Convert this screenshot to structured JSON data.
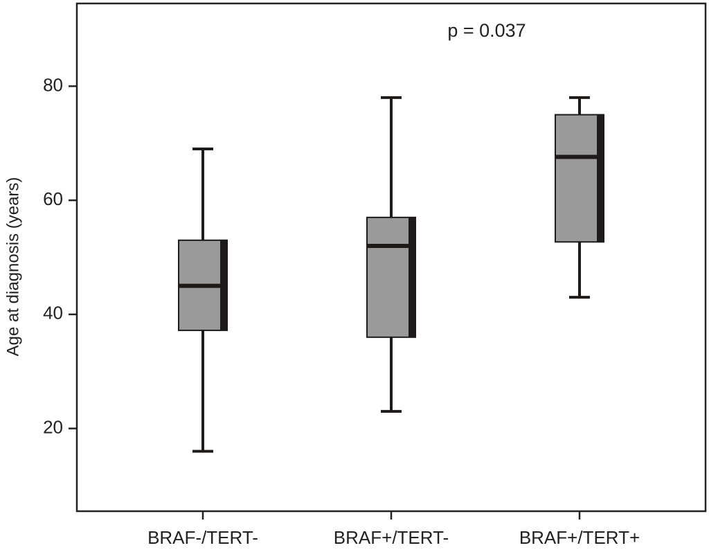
{
  "chart_data": {
    "type": "box",
    "ylabel": "Age at diagnosis (years)",
    "annotation": "p = 0.037",
    "categories": [
      "BRAF-/TERT-",
      "BRAF+/TERT-",
      "BRAF+/TERT+"
    ],
    "min": [
      16,
      23,
      43
    ],
    "q1": [
      37.2,
      36,
      52.7
    ],
    "median": [
      45,
      52,
      67.6
    ],
    "q3": [
      53,
      57,
      75
    ],
    "max": [
      69,
      78,
      78
    ],
    "color": "#9a9a9a",
    "ylim": [
      5.5,
      94.5
    ],
    "yticks": [
      20,
      40,
      60,
      80
    ]
  }
}
